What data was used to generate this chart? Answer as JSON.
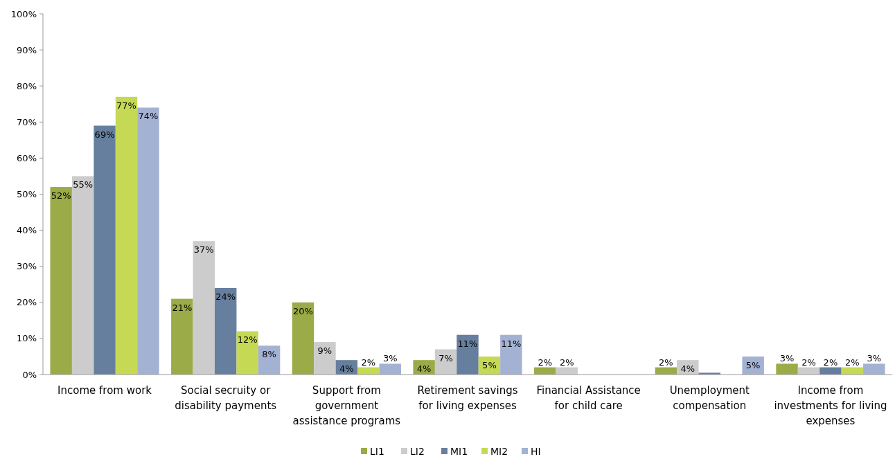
{
  "chart_data": {
    "type": "bar",
    "categories": [
      "Income from work",
      "Social secruity or\ndisability payments",
      "Support from\ngovernment\nassistance programs",
      "Retirement savings\nfor living expenses",
      "Financial Assistance\nfor child care",
      "Unemployment\ncompensation",
      "Income from\ninvestments for living\nexpenses"
    ],
    "series": [
      {
        "name": "LI1",
        "color": "#9aab47",
        "values": [
          52,
          21,
          20,
          4,
          2,
          2,
          3
        ],
        "value_labels": [
          "52%",
          "21%",
          "20%",
          "4%",
          "2%",
          "2%",
          "3%"
        ]
      },
      {
        "name": "LI2",
        "color": "#cccccc",
        "values": [
          55,
          37,
          9,
          7,
          2,
          4,
          2
        ],
        "value_labels": [
          "55%",
          "37%",
          "9%",
          "7%",
          "2%",
          "4%",
          "2%"
        ]
      },
      {
        "name": "MI1",
        "color": "#667f9f",
        "values": [
          69,
          24,
          4,
          11,
          null,
          0.5,
          2
        ],
        "value_labels": [
          "69%",
          "24%",
          "4%",
          "11%",
          null,
          null,
          "2%"
        ]
      },
      {
        "name": "MI2",
        "color": "#c5d955",
        "values": [
          77,
          12,
          2,
          5,
          null,
          null,
          2
        ],
        "value_labels": [
          "77%",
          "12%",
          "2%",
          "5%",
          null,
          null,
          "2%"
        ]
      },
      {
        "name": "HI",
        "color": "#a3b1d3",
        "values": [
          74,
          8,
          3,
          11,
          null,
          5,
          3
        ],
        "value_labels": [
          "74%",
          "8%",
          "3%",
          "11%",
          null,
          "5%",
          "3%"
        ]
      }
    ],
    "ylim": [
      0,
      100
    ],
    "yticks": [
      {
        "value": 0,
        "label": "0%"
      },
      {
        "value": 10,
        "label": "10%"
      },
      {
        "value": 20,
        "label": "20%"
      },
      {
        "value": 30,
        "label": "30%"
      },
      {
        "value": 40,
        "label": "40%"
      },
      {
        "value": 50,
        "label": "50%"
      },
      {
        "value": 60,
        "label": "60%"
      },
      {
        "value": 70,
        "label": "70%"
      },
      {
        "value": 80,
        "label": "80%"
      },
      {
        "value": 90,
        "label": "90%"
      },
      {
        "value": 100,
        "label": "100%"
      }
    ],
    "grid": false,
    "legend": "bottom"
  }
}
